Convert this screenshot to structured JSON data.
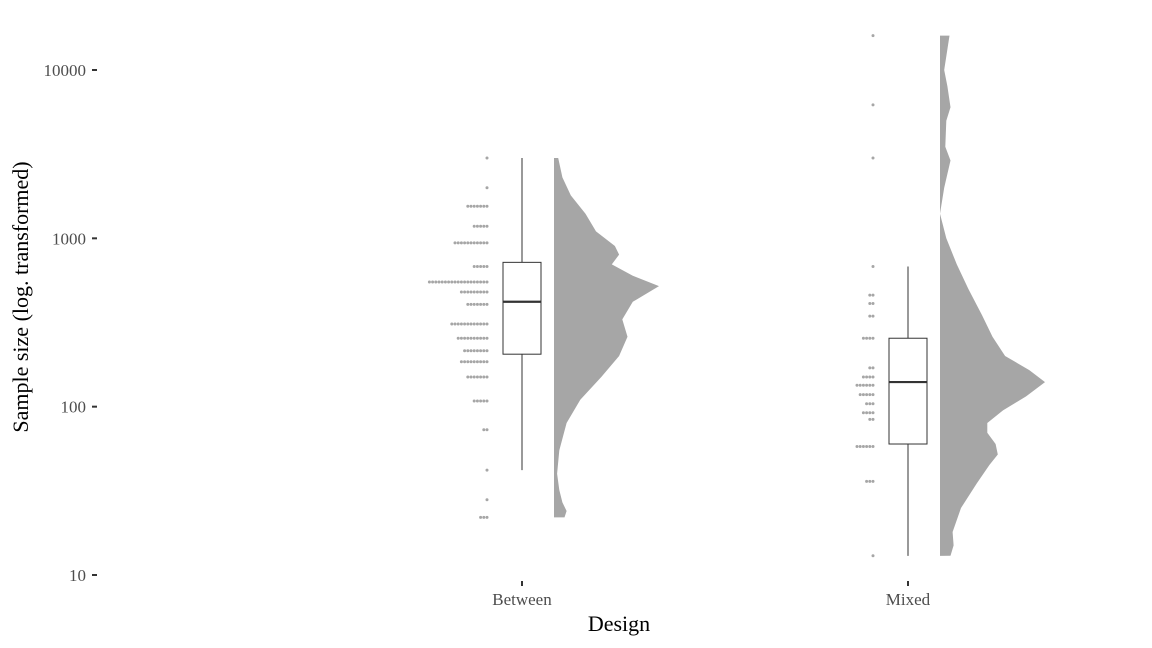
{
  "chart_data": {
    "type": "raincloud",
    "xlabel": "Design",
    "ylabel": "Sample size (log. transformed)",
    "y_scale": "log10",
    "ylim": [
      10,
      16000
    ],
    "y_ticks": [
      10,
      100,
      1000,
      10000
    ],
    "y_tick_labels": [
      "10",
      "100",
      "1000",
      "10000"
    ],
    "categories": [
      "Between",
      "Mixed"
    ],
    "grid": false,
    "legend": "none",
    "colors": {
      "density": "#a6a6a6",
      "points": "#a6a6a6",
      "box": "#333333",
      "text": "#4d4d4d"
    },
    "groups": [
      {
        "category": "Between",
        "box": {
          "min": 42,
          "q1": 205,
          "median": 420,
          "q3": 720,
          "max": 3000
        },
        "dot_rows": [
          {
            "y": 3000,
            "count": 1
          },
          {
            "y": 2000,
            "count": 1
          },
          {
            "y": 1550,
            "count": 7
          },
          {
            "y": 1180,
            "count": 5
          },
          {
            "y": 940,
            "count": 11
          },
          {
            "y": 680,
            "count": 5
          },
          {
            "y": 550,
            "count": 19
          },
          {
            "y": 480,
            "count": 9
          },
          {
            "y": 405,
            "count": 7
          },
          {
            "y": 310,
            "count": 12
          },
          {
            "y": 255,
            "count": 10
          },
          {
            "y": 215,
            "count": 8
          },
          {
            "y": 185,
            "count": 9
          },
          {
            "y": 150,
            "count": 7
          },
          {
            "y": 108,
            "count": 5
          },
          {
            "y": 73,
            "count": 2
          },
          {
            "y": 42,
            "count": 1
          },
          {
            "y": 28,
            "count": 1
          },
          {
            "y": 22,
            "count": 3
          }
        ],
        "density": [
          [
            22,
            0.1
          ],
          [
            24,
            0.12
          ],
          [
            27,
            0.08
          ],
          [
            32,
            0.05
          ],
          [
            40,
            0.03
          ],
          [
            55,
            0.05
          ],
          [
            80,
            0.12
          ],
          [
            110,
            0.25
          ],
          [
            150,
            0.45
          ],
          [
            200,
            0.62
          ],
          [
            260,
            0.7
          ],
          [
            330,
            0.65
          ],
          [
            420,
            0.75
          ],
          [
            520,
            1.0
          ],
          [
            600,
            0.75
          ],
          [
            700,
            0.55
          ],
          [
            800,
            0.62
          ],
          [
            900,
            0.58
          ],
          [
            1100,
            0.4
          ],
          [
            1400,
            0.3
          ],
          [
            1800,
            0.16
          ],
          [
            2300,
            0.08
          ],
          [
            3000,
            0.04
          ]
        ]
      },
      {
        "category": "Mixed",
        "box": {
          "min": 13,
          "q1": 60,
          "median": 140,
          "q3": 255,
          "max": 680
        },
        "dot_rows": [
          {
            "y": 16000,
            "count": 1
          },
          {
            "y": 6200,
            "count": 1
          },
          {
            "y": 3000,
            "count": 1
          },
          {
            "y": 680,
            "count": 1
          },
          {
            "y": 460,
            "count": 2
          },
          {
            "y": 410,
            "count": 2
          },
          {
            "y": 345,
            "count": 2
          },
          {
            "y": 255,
            "count": 4
          },
          {
            "y": 170,
            "count": 2
          },
          {
            "y": 150,
            "count": 4
          },
          {
            "y": 134,
            "count": 6
          },
          {
            "y": 118,
            "count": 5
          },
          {
            "y": 104,
            "count": 3
          },
          {
            "y": 92,
            "count": 4
          },
          {
            "y": 84,
            "count": 2
          },
          {
            "y": 58,
            "count": 6
          },
          {
            "y": 36,
            "count": 3
          },
          {
            "y": 13,
            "count": 1
          }
        ],
        "density": [
          [
            13,
            0.1
          ],
          [
            15,
            0.13
          ],
          [
            18,
            0.12
          ],
          [
            25,
            0.2
          ],
          [
            35,
            0.35
          ],
          [
            45,
            0.47
          ],
          [
            52,
            0.55
          ],
          [
            60,
            0.53
          ],
          [
            70,
            0.45
          ],
          [
            80,
            0.45
          ],
          [
            95,
            0.6
          ],
          [
            115,
            0.82
          ],
          [
            140,
            1.0
          ],
          [
            165,
            0.85
          ],
          [
            200,
            0.62
          ],
          [
            260,
            0.5
          ],
          [
            350,
            0.4
          ],
          [
            500,
            0.27
          ],
          [
            700,
            0.16
          ],
          [
            1000,
            0.06
          ],
          [
            1400,
            0.0
          ],
          [
            2000,
            0.04
          ],
          [
            2900,
            0.1
          ],
          [
            3500,
            0.05
          ],
          [
            5000,
            0.06
          ],
          [
            6000,
            0.1
          ],
          [
            8000,
            0.07
          ],
          [
            10000,
            0.04
          ],
          [
            16000,
            0.09
          ]
        ]
      }
    ]
  }
}
